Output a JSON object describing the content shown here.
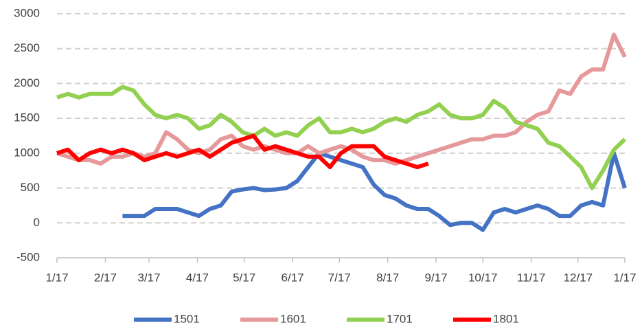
{
  "chart_data": {
    "type": "line",
    "x": [
      0,
      7,
      14,
      21,
      28,
      35,
      42,
      49,
      56,
      63,
      70,
      77,
      84,
      91,
      98,
      105,
      112,
      119,
      126,
      133,
      140,
      147,
      154,
      161,
      168,
      175,
      182,
      189,
      196,
      203,
      210,
      217,
      224,
      231,
      238,
      245,
      252,
      259,
      266,
      273,
      280,
      287,
      294,
      301,
      308,
      315,
      322,
      329,
      336,
      343,
      350,
      357,
      364
    ],
    "xlim": [
      0,
      364
    ],
    "xticks": [
      {
        "value": 0,
        "label": "1/17"
      },
      {
        "value": 31,
        "label": "2/17"
      },
      {
        "value": 59,
        "label": "3/17"
      },
      {
        "value": 90,
        "label": "4/17"
      },
      {
        "value": 120,
        "label": "5/17"
      },
      {
        "value": 151,
        "label": "6/17"
      },
      {
        "value": 181,
        "label": "7/17"
      },
      {
        "value": 212,
        "label": "8/17"
      },
      {
        "value": 243,
        "label": "9/17"
      },
      {
        "value": 273,
        "label": "10/17"
      },
      {
        "value": 304,
        "label": "11/17"
      },
      {
        "value": 334,
        "label": "12/17"
      },
      {
        "value": 364,
        "label": "1/17"
      }
    ],
    "ylim": [
      -500,
      3000
    ],
    "yticks": [
      -500,
      0,
      500,
      1000,
      1500,
      2000,
      2500,
      3000
    ],
    "grid": true,
    "legend": "bottom",
    "series": [
      {
        "name": "1501",
        "color": "#4472c4",
        "values": [
          null,
          null,
          null,
          null,
          null,
          null,
          100,
          100,
          100,
          200,
          200,
          200,
          150,
          100,
          200,
          250,
          450,
          480,
          500,
          470,
          480,
          500,
          600,
          800,
          1000,
          950,
          900,
          850,
          800,
          550,
          400,
          350,
          250,
          200,
          200,
          100,
          -30,
          0,
          0,
          -100,
          150,
          200,
          150,
          200,
          250,
          200,
          100,
          100,
          250,
          300,
          250,
          1000,
          500
        ]
      },
      {
        "name": "1601",
        "color": "#e6999a",
        "values": [
          1000,
          950,
          900,
          900,
          850,
          950,
          950,
          1000,
          950,
          1000,
          1300,
          1200,
          1050,
          1000,
          1050,
          1200,
          1250,
          1100,
          1050,
          1100,
          1050,
          1000,
          1000,
          1100,
          1000,
          1050,
          1100,
          1050,
          950,
          900,
          900,
          850,
          900,
          950,
          1000,
          1050,
          1100,
          1150,
          1200,
          1200,
          1250,
          1250,
          1300,
          1450,
          1550,
          1600,
          1900,
          1850,
          2100,
          2200,
          2200,
          2700,
          2380
        ]
      },
      {
        "name": "1701",
        "color": "#92d050",
        "values": [
          1800,
          1850,
          1800,
          1850,
          1850,
          1850,
          1950,
          1900,
          1700,
          1550,
          1500,
          1550,
          1500,
          1350,
          1400,
          1550,
          1450,
          1300,
          1250,
          1350,
          1250,
          1300,
          1250,
          1400,
          1500,
          1300,
          1300,
          1350,
          1300,
          1350,
          1450,
          1500,
          1450,
          1550,
          1600,
          1700,
          1550,
          1500,
          1500,
          1550,
          1750,
          1650,
          1450,
          1400,
          1350,
          1150,
          1100,
          950,
          800,
          500,
          750,
          1050,
          1200
        ]
      },
      {
        "name": "1801",
        "color": "#ff0000",
        "values": [
          1000,
          1050,
          900,
          1000,
          1050,
          1000,
          1050,
          1000,
          900,
          950,
          1000,
          950,
          1000,
          1050,
          950,
          1050,
          1150,
          1200,
          1250,
          1050,
          1100,
          1050,
          1000,
          950,
          950,
          800,
          1000,
          1100,
          1100,
          1100,
          950,
          900,
          850,
          800,
          850,
          null,
          null,
          null,
          null,
          null,
          null,
          null,
          null,
          null,
          null,
          null,
          null,
          null,
          null,
          null,
          null,
          null,
          null
        ]
      }
    ]
  }
}
